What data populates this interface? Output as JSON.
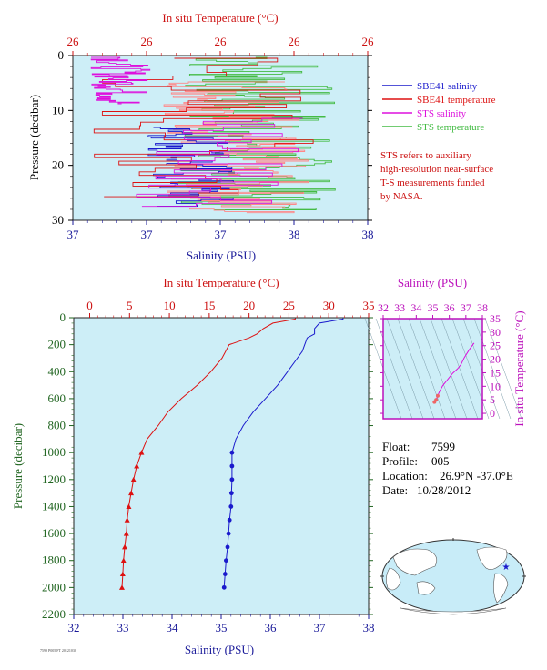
{
  "colors": {
    "salinity": "#1a1acc",
    "temperature": "#dd1111",
    "sts_salinity": "#dd11dd",
    "sts_temperature": "#44bb44",
    "sts_temp_light": "#ff8888",
    "panel_bg": "#cdeef7",
    "temp_axis": "#cc1111",
    "sal_axis": "#1a1a99",
    "pressure_axis": "#226622",
    "ts_axis": "#bb11bb"
  },
  "top_chart": {
    "title_top": "In situ Temperature (°C)",
    "top_ticks": [
      "26",
      "26",
      "26",
      "26",
      "26"
    ],
    "ylabel": "Pressure (decibar)",
    "y_ticks": [
      "0",
      "10",
      "20",
      "30"
    ],
    "xlabel": "Salinity (PSU)",
    "bottom_ticks": [
      "37",
      "37",
      "37",
      "38",
      "38"
    ],
    "legend": [
      {
        "label": "SBE41 salinity",
        "color": "#1a1acc"
      },
      {
        "label": "SBE41 temperature",
        "color": "#dd1111"
      },
      {
        "label": "STS salinity",
        "color": "#dd11dd"
      },
      {
        "label": "STS temperature",
        "color": "#44bb44"
      }
    ],
    "note": [
      "STS refers to auxiliary",
      "high-resolution near-surface",
      "T-S measurements funded",
      "by NASA."
    ]
  },
  "main_chart": {
    "title_top": "In situ Temperature (°C)",
    "top_ticks": [
      "0",
      "5",
      "10",
      "15",
      "20",
      "25",
      "30",
      "35"
    ],
    "ylabel": "Pressure (decibar)",
    "y_ticks": [
      "0",
      "200",
      "400",
      "600",
      "800",
      "1000",
      "1200",
      "1400",
      "1600",
      "1800",
      "2000",
      "2200"
    ],
    "xlabel": "Salinity (PSU)",
    "bottom_ticks": [
      "32",
      "33",
      "34",
      "35",
      "36",
      "37",
      "38"
    ],
    "footer_code": "7599 P005 FT 20121030"
  },
  "ts_chart": {
    "title": "Salinity (PSU)",
    "top_ticks": [
      "32",
      "33",
      "34",
      "35",
      "36",
      "37",
      "38"
    ],
    "right_ticks": [
      "0",
      "5",
      "10",
      "15",
      "20",
      "25",
      "30",
      "35"
    ],
    "ylabel": "In situ Temperature (°C)"
  },
  "info": {
    "float_label": "Float:",
    "float_value": "7599",
    "profile_label": "Profile:",
    "profile_value": "005",
    "location_label": "Location:",
    "location_value": "26.9°N  -37.0°E",
    "date_label": "Date:",
    "date_value": "10/28/2012"
  },
  "chart_data": [
    {
      "type": "line",
      "name": "main-profile",
      "x_axis": {
        "label": "Salinity (PSU)",
        "range": [
          32,
          38
        ]
      },
      "x2_axis": {
        "label": "In situ Temperature (°C)",
        "range": [
          -2,
          35
        ]
      },
      "y_axis": {
        "label": "Pressure (decibar)",
        "range": [
          0,
          2200
        ],
        "inverted": true
      },
      "series": [
        {
          "name": "salinity",
          "axis": "x",
          "pressure": [
            0,
            10,
            40,
            80,
            120,
            150,
            200,
            250,
            300,
            400,
            500,
            600,
            700,
            800,
            900,
            1000,
            1100,
            1200,
            1300,
            1400,
            1500,
            1600,
            1700,
            1800,
            1900,
            2000
          ],
          "values": [
            37.48,
            37.48,
            37.0,
            36.9,
            36.9,
            36.75,
            36.7,
            36.65,
            36.55,
            36.35,
            36.15,
            35.9,
            35.65,
            35.45,
            35.3,
            35.22,
            35.22,
            35.22,
            35.21,
            35.2,
            35.17,
            35.15,
            35.13,
            35.1,
            35.08,
            35.06
          ]
        },
        {
          "name": "temperature",
          "axis": "x2",
          "pressure": [
            0,
            10,
            40,
            80,
            120,
            150,
            190,
            200,
            300,
            400,
            500,
            600,
            700,
            800,
            900,
            1000,
            1100,
            1200,
            1300,
            1400,
            1500,
            1600,
            1700,
            1800,
            1900,
            2000
          ],
          "values": [
            25.8,
            25.8,
            23.0,
            21.8,
            21.0,
            20.0,
            18.0,
            17.5,
            16.6,
            15.2,
            13.5,
            11.5,
            9.8,
            8.6,
            7.2,
            6.5,
            5.9,
            5.5,
            5.2,
            4.9,
            4.7,
            4.6,
            4.4,
            4.25,
            4.15,
            4.05
          ]
        }
      ]
    },
    {
      "type": "scatter",
      "name": "ts-diagram",
      "x_axis": {
        "label": "Salinity (PSU)",
        "range": [
          32,
          38
        ]
      },
      "y_axis": {
        "label": "In situ Temperature (°C)",
        "range": [
          -2,
          35
        ]
      },
      "x": [
        35.1,
        35.2,
        35.3,
        35.4,
        35.6,
        35.9,
        36.2,
        36.5,
        36.7,
        36.9,
        37.2,
        37.5
      ],
      "y": [
        4.2,
        5.0,
        6.5,
        8.0,
        10.2,
        12.5,
        14.8,
        16.5,
        18.0,
        20.5,
        23.5,
        26.0
      ]
    }
  ]
}
